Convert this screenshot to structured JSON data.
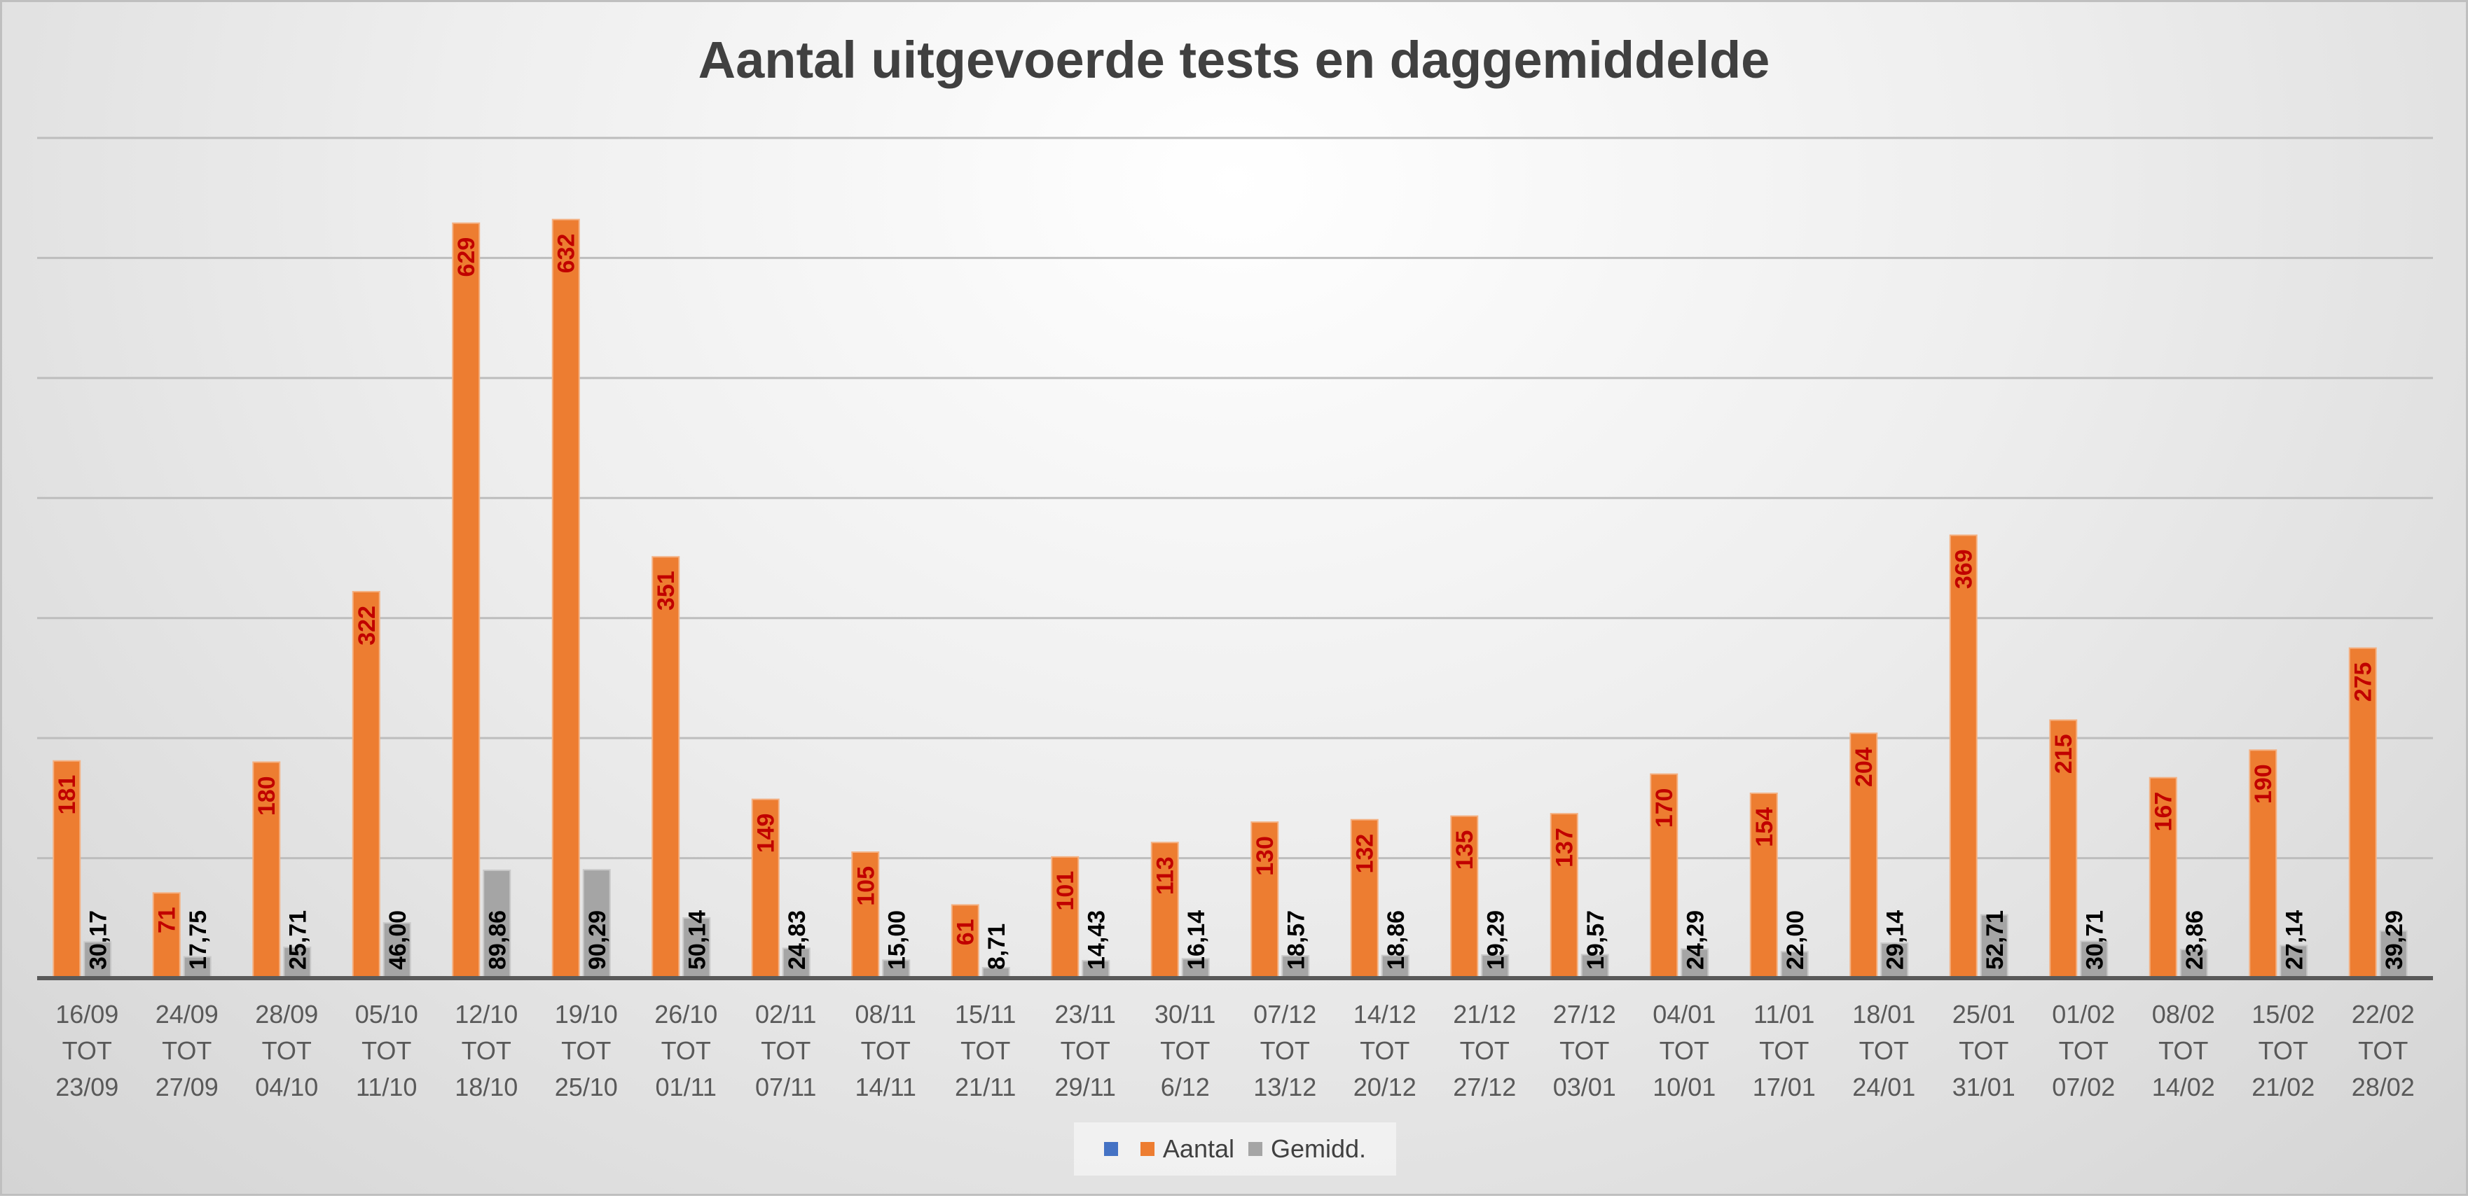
{
  "chart_data": {
    "type": "bar",
    "title": "Aantal uitgevoerde tests en daggemiddelde",
    "categories": [
      [
        "16/09",
        "TOT",
        "23/09"
      ],
      [
        "24/09",
        "TOT",
        "27/09"
      ],
      [
        "28/09",
        "TOT",
        "04/10"
      ],
      [
        "05/10",
        "TOT",
        "11/10"
      ],
      [
        "12/10",
        "TOT",
        "18/10"
      ],
      [
        "19/10",
        "TOT",
        "25/10"
      ],
      [
        "26/10",
        "TOT",
        "01/11"
      ],
      [
        "02/11",
        "TOT",
        "07/11"
      ],
      [
        "08/11",
        "TOT",
        "14/11"
      ],
      [
        "15/11",
        "TOT",
        "21/11"
      ],
      [
        "23/11",
        "TOT",
        "29/11"
      ],
      [
        "30/11",
        "TOT",
        "6/12"
      ],
      [
        "07/12",
        "TOT",
        "13/12"
      ],
      [
        "14/12",
        "TOT",
        "20/12"
      ],
      [
        "21/12",
        "TOT",
        "27/12"
      ],
      [
        "27/12",
        "TOT",
        "03/01"
      ],
      [
        "04/01",
        "TOT",
        "10/01"
      ],
      [
        "11/01",
        "TOT",
        "17/01"
      ],
      [
        "18/01",
        "TOT",
        "24/01"
      ],
      [
        "25/01",
        "TOT",
        "31/01"
      ],
      [
        "01/02",
        "TOT",
        "07/02"
      ],
      [
        "08/02",
        "TOT",
        "14/02"
      ],
      [
        "15/02",
        "TOT",
        "21/02"
      ],
      [
        "22/02",
        "TOT",
        "28/02"
      ]
    ],
    "series": [
      {
        "name": "Aantal",
        "color": "#ed7d31",
        "values": [
          181,
          71,
          180,
          322,
          629,
          632,
          351,
          149,
          105,
          61,
          101,
          113,
          130,
          132,
          135,
          137,
          170,
          154,
          204,
          369,
          215,
          167,
          190,
          275
        ],
        "labels": [
          "181",
          "71",
          "180",
          "322",
          "629",
          "632",
          "351",
          "149",
          "105",
          "61",
          "101",
          "113",
          "130",
          "132",
          "135",
          "137",
          "170",
          "154",
          "204",
          "369",
          "215",
          "167",
          "190",
          "275"
        ]
      },
      {
        "name": "Gemidd.",
        "color": "#a5a5a5",
        "values": [
          30.17,
          17.75,
          25.71,
          46.0,
          89.86,
          90.29,
          50.14,
          24.83,
          15.0,
          8.71,
          14.43,
          16.14,
          18.57,
          18.86,
          19.29,
          19.57,
          24.29,
          22.0,
          29.14,
          52.71,
          30.71,
          23.86,
          27.14,
          39.29
        ],
        "labels": [
          "30,17",
          "17,75",
          "25,71",
          "46,00",
          "89,86",
          "90,29",
          "50,14",
          "24,83",
          "15,00",
          "8,71",
          "14,43",
          "16,14",
          "18,57",
          "18,86",
          "19,29",
          "19,57",
          "24,29",
          "22,00",
          "29,14",
          "52,71",
          "30,71",
          "23,86",
          "27,14",
          "39,29"
        ]
      }
    ],
    "ylim": [
      0,
      700
    ],
    "gridlines": [
      100,
      200,
      300,
      400,
      500,
      600,
      700
    ],
    "grid": true,
    "legend": {
      "position": "bottom",
      "entries": [
        {
          "name": "",
          "color": "#4472c4"
        },
        {
          "name": "Aantal",
          "color": "#ed7d31"
        },
        {
          "name": "Gemidd.",
          "color": "#a5a5a5"
        }
      ]
    }
  }
}
